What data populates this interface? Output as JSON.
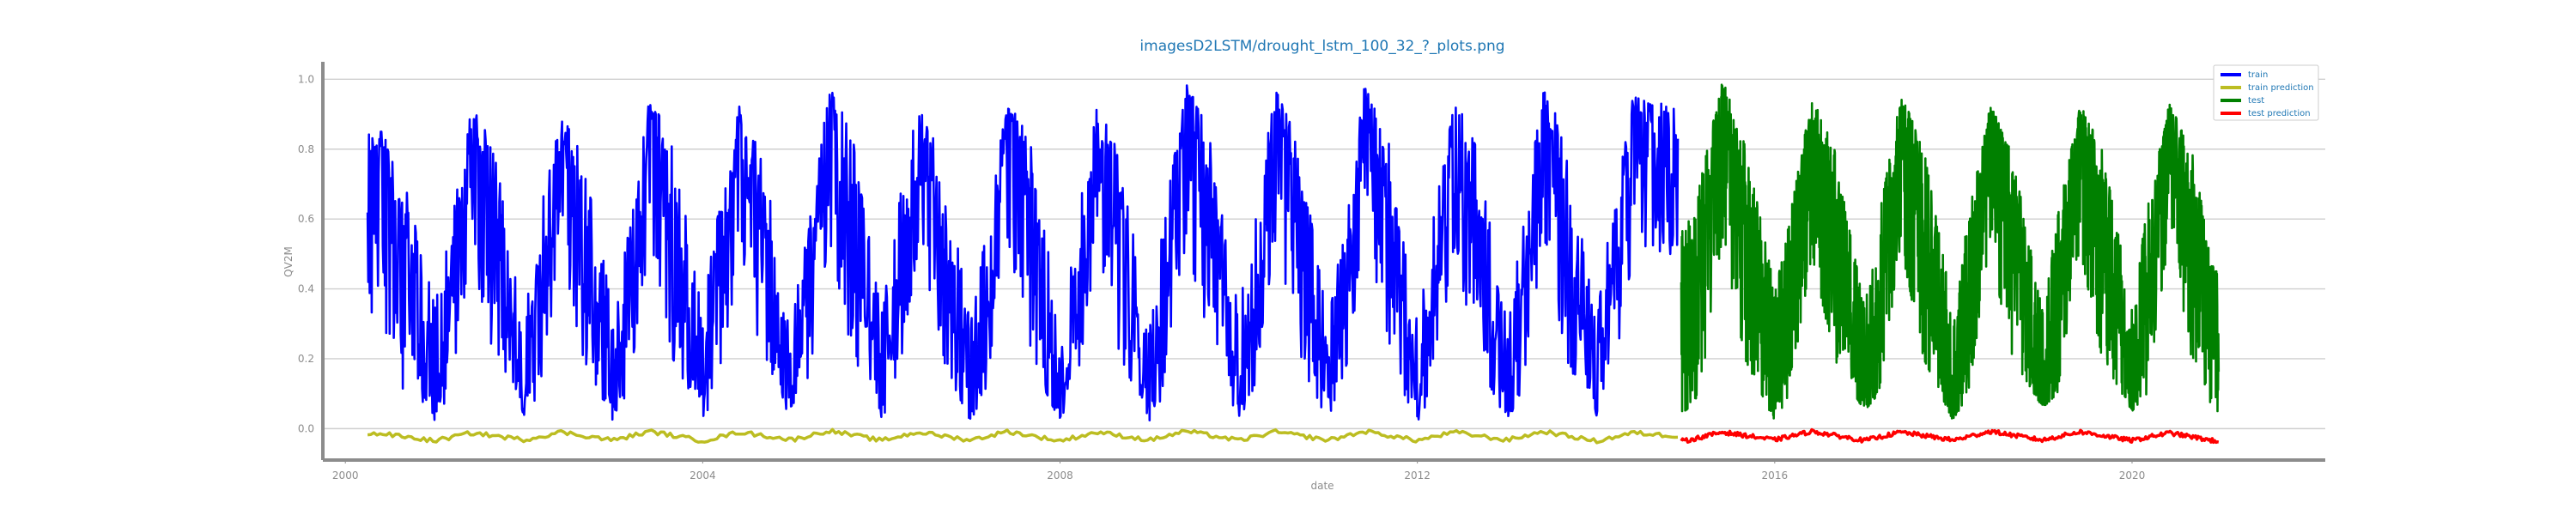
{
  "chart_data": {
    "type": "line",
    "title": "imagesD2LSTM/drought_lstm_100_32_?_plots.png",
    "xlabel": "date",
    "ylabel": "QV2M",
    "x_ticks": [
      "2000",
      "2004",
      "2008",
      "2012",
      "2016",
      "2020"
    ],
    "y_ticks": [
      "0.0",
      "0.2",
      "0.4",
      "0.6",
      "0.8",
      "1.0"
    ],
    "xlim": [
      "1999-10-01",
      "2022-03-01"
    ],
    "ylim": [
      -0.09,
      1.05
    ],
    "grid": "y",
    "legend_position": "top-right",
    "colors": {
      "train": "#0000ff",
      "train_prediction": "#bcbd22",
      "test": "#008000",
      "test_prediction": "#ff0000",
      "title": "#1f77b4",
      "legend_text": "#1f77b4"
    },
    "series": [
      {
        "name": "train",
        "key": "train",
        "range": [
          "2000-04-01",
          "2014-12-01"
        ],
        "x": [
          "2000-06",
          "2000-09",
          "2001-01",
          "2001-03",
          "2001-06",
          "2001-09",
          "2002-01",
          "2002-03",
          "2002-06",
          "2002-09",
          "2003-01",
          "2003-03",
          "2003-06",
          "2003-09",
          "2004-01",
          "2004-03",
          "2004-06",
          "2004-09",
          "2005-01",
          "2005-03",
          "2005-06",
          "2005-09",
          "2006-01",
          "2006-03",
          "2006-06",
          "2006-09",
          "2007-01",
          "2007-03",
          "2007-06",
          "2007-09",
          "2008-01",
          "2008-03",
          "2008-06",
          "2008-09",
          "2009-01",
          "2009-03",
          "2009-06",
          "2009-09",
          "2010-01",
          "2010-03",
          "2010-06",
          "2010-09",
          "2011-01",
          "2011-03",
          "2011-06",
          "2011-09",
          "2012-01",
          "2012-03",
          "2012-06",
          "2012-09",
          "2013-01",
          "2013-03",
          "2013-06",
          "2013-09",
          "2014-01",
          "2014-03",
          "2014-06",
          "2014-09"
        ],
        "y": [
          0.78,
          0.55,
          0.07,
          0.3,
          0.86,
          0.6,
          0.07,
          0.3,
          0.84,
          0.58,
          0.06,
          0.28,
          0.9,
          0.62,
          0.08,
          0.35,
          0.88,
          0.6,
          0.06,
          0.33,
          0.92,
          0.65,
          0.08,
          0.35,
          0.9,
          0.6,
          0.05,
          0.32,
          0.9,
          0.63,
          0.07,
          0.3,
          0.88,
          0.6,
          0.05,
          0.33,
          0.94,
          0.66,
          0.08,
          0.35,
          0.93,
          0.62,
          0.06,
          0.3,
          0.93,
          0.64,
          0.07,
          0.34,
          0.9,
          0.6,
          0.06,
          0.3,
          0.94,
          0.62,
          0.04,
          0.35,
          0.9,
          0.82
        ],
        "upper": [
          0.85,
          0.7,
          0.35,
          0.55,
          0.93,
          0.8,
          0.3,
          0.6,
          0.9,
          0.78,
          0.33,
          0.55,
          0.96,
          0.8,
          0.35,
          0.6,
          0.93,
          0.78,
          0.3,
          0.58,
          0.98,
          0.85,
          0.33,
          0.6,
          0.96,
          0.8,
          0.3,
          0.55,
          0.95,
          0.82,
          0.3,
          0.55,
          0.93,
          0.78,
          0.28,
          0.6,
          0.99,
          0.85,
          0.33,
          0.6,
          0.97,
          0.82,
          0.3,
          0.55,
          0.99,
          0.84,
          0.3,
          0.58,
          0.95,
          0.8,
          0.3,
          0.55,
          0.99,
          0.82,
          0.3,
          0.6,
          0.95,
          0.93
        ],
        "lower": [
          0.25,
          0.1,
          0.02,
          0.1,
          0.5,
          0.2,
          0.03,
          0.1,
          0.5,
          0.2,
          0.02,
          0.1,
          0.55,
          0.2,
          0.03,
          0.1,
          0.5,
          0.2,
          0.02,
          0.1,
          0.55,
          0.22,
          0.03,
          0.1,
          0.52,
          0.2,
          0.02,
          0.1,
          0.55,
          0.2,
          0.02,
          0.1,
          0.5,
          0.2,
          0.02,
          0.1,
          0.55,
          0.22,
          0.03,
          0.1,
          0.55,
          0.2,
          0.02,
          0.1,
          0.55,
          0.2,
          0.02,
          0.1,
          0.52,
          0.2,
          0.02,
          0.1,
          0.55,
          0.2,
          0.01,
          0.1,
          0.5,
          0.5
        ]
      },
      {
        "name": "train prediction",
        "key": "train_prediction",
        "range": [
          "2000-04-01",
          "2014-12-01"
        ],
        "x": [
          "2000-06",
          "2001-01",
          "2001-06",
          "2002-01",
          "2002-06",
          "2003-01",
          "2003-06",
          "2004-01",
          "2004-06",
          "2005-01",
          "2005-06",
          "2006-01",
          "2006-06",
          "2007-01",
          "2007-06",
          "2008-01",
          "2008-06",
          "2009-01",
          "2009-06",
          "2010-01",
          "2010-06",
          "2011-01",
          "2011-06",
          "2012-01",
          "2012-06",
          "2013-01",
          "2013-06",
          "2014-01",
          "2014-06",
          "2014-11"
        ],
        "y": [
          -0.015,
          -0.035,
          -0.012,
          -0.032,
          -0.01,
          -0.033,
          -0.008,
          -0.035,
          -0.01,
          -0.032,
          -0.006,
          -0.034,
          -0.01,
          -0.033,
          -0.008,
          -0.035,
          -0.01,
          -0.033,
          -0.007,
          -0.034,
          -0.009,
          -0.033,
          -0.008,
          -0.034,
          -0.01,
          -0.033,
          -0.008,
          -0.036,
          -0.012,
          -0.02
        ]
      },
      {
        "name": "test",
        "key": "test",
        "range": [
          "2014-12-15",
          "2020-12-20"
        ],
        "x": [
          "2015-01",
          "2015-03",
          "2015-06",
          "2015-09",
          "2016-01",
          "2016-03",
          "2016-06",
          "2016-09",
          "2017-01",
          "2017-03",
          "2017-06",
          "2017-09",
          "2018-01",
          "2018-03",
          "2018-06",
          "2018-09",
          "2019-01",
          "2019-03",
          "2019-06",
          "2019-09",
          "2020-01",
          "2020-03",
          "2020-06",
          "2020-09",
          "2020-12"
        ],
        "y": [
          0.3,
          0.45,
          0.9,
          0.62,
          0.12,
          0.3,
          0.88,
          0.6,
          0.08,
          0.3,
          0.9,
          0.62,
          0.06,
          0.3,
          0.9,
          0.6,
          0.08,
          0.3,
          0.9,
          0.6,
          0.08,
          0.35,
          0.92,
          0.6,
          0.3
        ],
        "upper": [
          0.58,
          0.7,
          1.0,
          0.82,
          0.4,
          0.6,
          0.95,
          0.8,
          0.35,
          0.6,
          0.96,
          0.8,
          0.33,
          0.6,
          0.93,
          0.78,
          0.33,
          0.6,
          0.93,
          0.8,
          0.35,
          0.62,
          0.93,
          0.8,
          0.45
        ],
        "lower": [
          0.05,
          0.1,
          0.55,
          0.2,
          0.02,
          0.1,
          0.5,
          0.2,
          0.05,
          0.1,
          0.52,
          0.2,
          0.02,
          0.1,
          0.5,
          0.2,
          0.06,
          0.1,
          0.52,
          0.2,
          0.05,
          0.1,
          0.55,
          0.2,
          0.05
        ]
      },
      {
        "name": "test prediction",
        "key": "test_prediction",
        "range": [
          "2014-12-15",
          "2020-12-20"
        ],
        "x": [
          "2015-01",
          "2015-06",
          "2016-01",
          "2016-06",
          "2017-01",
          "2017-06",
          "2018-01",
          "2018-06",
          "2019-01",
          "2019-06",
          "2020-01",
          "2020-06",
          "2020-12"
        ],
        "y": [
          -0.035,
          -0.01,
          -0.032,
          -0.008,
          -0.034,
          -0.01,
          -0.033,
          -0.008,
          -0.033,
          -0.009,
          -0.034,
          -0.012,
          -0.035
        ]
      }
    ]
  }
}
